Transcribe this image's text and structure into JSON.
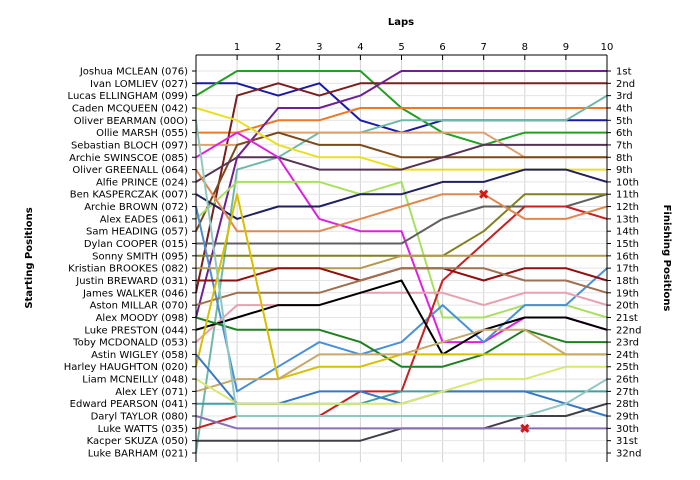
{
  "chart_data": {
    "type": "line",
    "title": "",
    "xlabel": "Laps",
    "ylabel_left": "Starting Positions",
    "ylabel_right": "Finishing Positions",
    "x": [
      0,
      1,
      2,
      3,
      4,
      5,
      6,
      7,
      8,
      9,
      10
    ],
    "x_tick_labels": [
      "1",
      "2",
      "3",
      "4",
      "5",
      "6",
      "7",
      "8",
      "9",
      "10"
    ],
    "ylim": [
      1,
      32
    ],
    "grid": true,
    "starting_positions": [
      "Joshua MCLEAN (076)",
      "Ivan LOMLIEV (027)",
      "Lucas ELLINGHAM (099)",
      "Caden MCQUEEN (042)",
      "Oliver BEARMAN (00O)",
      "Ollie MARSH (055)",
      "Sebastian BLOCH (097)",
      "Archie SWINSCOE (085)",
      "Oliver GREENALL (064)",
      "Alfie PRINCE (024)",
      "Ben KASPERCZAK (007)",
      "Archie BROWN (072)",
      "Alex EADES (061)",
      "Sam HEADING (057)",
      "Dylan COOPER (015)",
      "Sonny SMITH (095)",
      "Kristian BROOKES (082)",
      "Justin BREWARD (031)",
      "James WALKER (046)",
      "Aston MILLAR (070)",
      "Alex MOODY (098)",
      "Luke PRESTON (044)",
      "Toby MCDONALD (053)",
      "Astin WIGLEY (058)",
      "Harley HAUGHTON (020)",
      "Liam MCNEILLY (048)",
      "Alex LEY (071)",
      "Edward PEARSON (041)",
      "Daryl TAYLOR (080)",
      "Luke WATTS (035)",
      "Kacper SKUZA (050)",
      "Luke BARHAM (021)"
    ],
    "finishing_positions": [
      "1st",
      "2nd",
      "3rd",
      "4th",
      "5th",
      "6th",
      "7th",
      "8th",
      "9th",
      "10th",
      "11th",
      "12th",
      "13th",
      "14th",
      "15th",
      "16th",
      "17th",
      "18th",
      "19th",
      "20th",
      "21st",
      "22nd",
      "23rd",
      "24th",
      "25th",
      "26th",
      "27th",
      "28th",
      "29th",
      "30th",
      "31st",
      "32nd"
    ],
    "series": [
      {
        "color": "#1a1aa8",
        "values": [
          2,
          2,
          3,
          2,
          5,
          6,
          5,
          5,
          5,
          5,
          5
        ]
      },
      {
        "color": "#22a022",
        "values": [
          3,
          1,
          1,
          1,
          1,
          4,
          6,
          7,
          6,
          6,
          6
        ]
      },
      {
        "color": "#f07820",
        "values": [
          6,
          6,
          5,
          5,
          4,
          4,
          4,
          4,
          4,
          4,
          4
        ]
      },
      {
        "color": "#7a1f1f",
        "values": [
          19,
          3,
          2,
          3,
          2,
          2,
          2,
          2,
          2,
          2,
          2
        ]
      },
      {
        "color": "#702090",
        "values": [
          21,
          8,
          4,
          4,
          3,
          1,
          1,
          1,
          1,
          1,
          1
        ]
      },
      {
        "color": "#70b8a8",
        "values": [
          32,
          9,
          8,
          6,
          6,
          5,
          5,
          5,
          5,
          5,
          3
        ]
      },
      {
        "color": "#e0a070",
        "values": [
          7,
          7,
          6,
          6,
          6,
          6,
          6,
          6,
          8,
          8,
          8
        ]
      },
      {
        "color": "#7a4a1a",
        "values": [
          14,
          7,
          6,
          7,
          7,
          8,
          8,
          8,
          8,
          8,
          8
        ]
      },
      {
        "color": "#e8e020",
        "values": [
          4,
          5,
          7,
          8,
          8,
          9,
          9,
          9,
          9,
          9,
          9
        ]
      },
      {
        "color": "#553355",
        "values": [
          10,
          8,
          8,
          9,
          9,
          9,
          8,
          7,
          7,
          7,
          7
        ]
      },
      {
        "color": "#e020e0",
        "values": [
          8,
          6,
          8,
          13,
          14,
          14,
          23,
          23,
          21,
          21,
          22
        ]
      },
      {
        "color": "#a8e060",
        "values": [
          13,
          10,
          10,
          10,
          11,
          10,
          21,
          21,
          20,
          20,
          21
        ]
      },
      {
        "color": "#202060",
        "values": [
          11,
          13,
          12,
          12,
          11,
          11,
          10,
          10,
          9,
          9,
          10
        ]
      },
      {
        "color": "#606060",
        "values": [
          15,
          15,
          15,
          15,
          15,
          15,
          13,
          12,
          12,
          12,
          11
        ]
      },
      {
        "color": "#808020",
        "values": [
          16,
          16,
          16,
          16,
          16,
          16,
          16,
          14,
          11,
          11,
          11
        ]
      },
      {
        "color": "#4a90d8",
        "values": [
          12,
          27,
          25,
          23,
          24,
          23,
          20,
          23,
          20,
          20,
          17
        ]
      },
      {
        "color": "#c82020",
        "values": [
          30,
          29,
          29,
          29,
          27,
          27,
          18,
          15,
          12,
          12,
          13
        ]
      },
      {
        "color": "#e08850",
        "values": [
          9,
          14,
          14,
          14,
          13,
          12,
          11,
          11,
          13,
          13,
          12
        ]
      },
      {
        "color": "#b49a50",
        "values": [
          17,
          17,
          17,
          17,
          17,
          16,
          16,
          16,
          16,
          16,
          16
        ]
      },
      {
        "color": "#901010",
        "values": [
          18,
          18,
          17,
          17,
          18,
          17,
          17,
          18,
          17,
          17,
          18
        ]
      },
      {
        "color": "#a07050",
        "values": [
          20,
          19,
          19,
          19,
          18,
          17,
          17,
          17,
          18,
          18,
          19
        ]
      },
      {
        "color": "#e8a0b0",
        "values": [
          23,
          20,
          20,
          20,
          19,
          19,
          19,
          20,
          19,
          19,
          20
        ]
      },
      {
        "color": "#000000",
        "values": [
          22,
          21,
          20,
          20,
          19,
          18,
          24,
          22,
          21,
          21,
          22
        ]
      },
      {
        "color": "#208020",
        "values": [
          21,
          22,
          22,
          22,
          23,
          25,
          25,
          24,
          22,
          23,
          23
        ]
      },
      {
        "color": "#d8c000",
        "values": [
          25,
          11,
          26,
          25,
          25,
          24,
          24,
          24,
          24,
          24,
          24
        ]
      },
      {
        "color": "#c8a868",
        "values": [
          27,
          26,
          26,
          24,
          24,
          24,
          23,
          22,
          22,
          24,
          24
        ]
      },
      {
        "color": "#40a0a0",
        "values": [
          28,
          28,
          28,
          28,
          28,
          27,
          27,
          27,
          27,
          27,
          27
        ]
      },
      {
        "color": "#3878c8",
        "values": [
          24,
          28,
          28,
          27,
          27,
          28,
          27,
          27,
          27,
          28,
          29
        ]
      },
      {
        "color": "#d8e870",
        "values": [
          26,
          28,
          28,
          28,
          28,
          28,
          27,
          26,
          26,
          25,
          25
        ]
      },
      {
        "color": "#404048",
        "values": [
          31,
          31,
          31,
          31,
          31,
          30,
          30,
          30,
          29,
          29,
          28
        ]
      },
      {
        "color": "#8870b8",
        "values": [
          29,
          30,
          30,
          30,
          30,
          30,
          30,
          30,
          30,
          30,
          30
        ]
      },
      {
        "color": "#90c8c0",
        "values": [
          5,
          29,
          29,
          29,
          29,
          29,
          29,
          29,
          29,
          28,
          26
        ]
      }
    ],
    "retirements": [
      {
        "lap": 7,
        "position": 11
      },
      {
        "lap": 8,
        "position": 30
      }
    ]
  }
}
